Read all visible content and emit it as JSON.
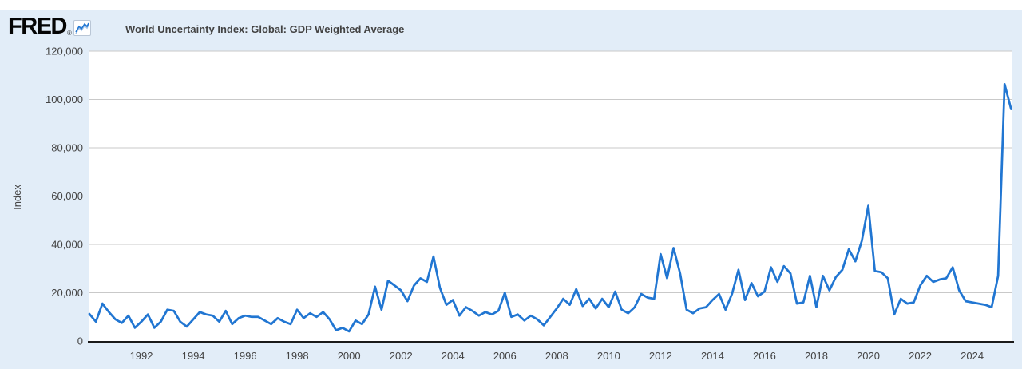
{
  "brand": {
    "logo_text": "FRED",
    "registered_mark": "®",
    "sparkline_icon": "fred-sparkline-icon"
  },
  "legend": {
    "series_label": "World Uncertainty Index: Global: GDP Weighted Average",
    "swatch_color": "#2176d2"
  },
  "colors": {
    "page_background": "#e2edf8",
    "plot_background": "#ffffff",
    "line": "#2176d2",
    "gridline": "#c9c9c9",
    "axis": "#1a1a1a",
    "tick_text": "#444444"
  },
  "chart_data": {
    "type": "line",
    "title": "World Uncertainty Index: Global: GDP Weighted Average",
    "ylabel": "Index",
    "xlabel": "",
    "frequency": "quarterly",
    "start_period": "1990 Q1",
    "end_period": "2025 Q3",
    "grid": true,
    "legend_position": "top-left",
    "line_color": "#2176d2",
    "ylim": [
      0,
      120000
    ],
    "xlim_years": [
      1990,
      2025.55
    ],
    "y_ticks": [
      0,
      20000,
      40000,
      60000,
      80000,
      100000,
      120000
    ],
    "y_tick_labels": [
      "0",
      "20,000",
      "40,000",
      "60,000",
      "80,000",
      "100,000",
      "120,000"
    ],
    "x_tick_years": [
      1992,
      1994,
      1996,
      1998,
      2000,
      2002,
      2004,
      2006,
      2008,
      2010,
      2012,
      2014,
      2016,
      2018,
      2020,
      2022,
      2024
    ],
    "values": [
      11200,
      8000,
      15500,
      12000,
      9000,
      7500,
      10500,
      5500,
      8000,
      11000,
      5500,
      8000,
      13000,
      12500,
      8000,
      6000,
      9000,
      12000,
      11000,
      10500,
      8000,
      12500,
      7000,
      9500,
      10500,
      10000,
      10000,
      8500,
      7000,
      9500,
      8000,
      7000,
      13000,
      9500,
      11500,
      10000,
      12000,
      9000,
      4500,
      5500,
      4000,
      8500,
      7000,
      11000,
      22500,
      13000,
      25000,
      23000,
      21000,
      16500,
      23000,
      26000,
      24500,
      35000,
      22000,
      15000,
      17000,
      10500,
      14000,
      12500,
      10500,
      12000,
      11000,
      12500,
      20000,
      10000,
      11000,
      8500,
      10500,
      9000,
      6500,
      10000,
      13500,
      17500,
      15000,
      21500,
      14500,
      17500,
      13500,
      17500,
      14000,
      20500,
      13000,
      11500,
      14000,
      19500,
      18000,
      17500,
      36000,
      26000,
      38500,
      28000,
      13000,
      11500,
      13500,
      14000,
      17000,
      19500,
      13000,
      19500,
      29500,
      17000,
      24000,
      18500,
      20500,
      30500,
      24500,
      31000,
      28000,
      15500,
      16000,
      27000,
      14000,
      27000,
      21000,
      26500,
      29500,
      38000,
      33000,
      41500,
      56000,
      29000,
      28500,
      26000,
      11000,
      17500,
      15500,
      16000,
      23000,
      27000,
      24500,
      25500,
      26000,
      30500,
      21000,
      16500,
      16000,
      15500,
      15000,
      14000,
      27000,
      106300,
      96000
    ]
  }
}
